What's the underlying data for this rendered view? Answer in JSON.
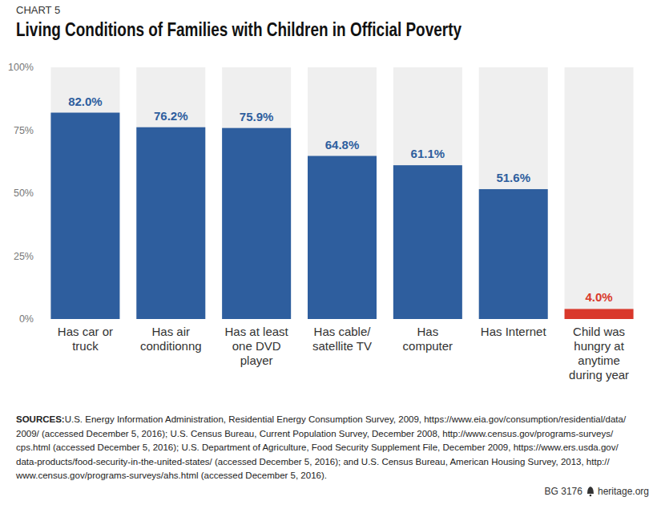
{
  "chart_data": {
    "type": "bar",
    "label": "CHART 5",
    "title": "Living Conditions of Families with Children in Official Poverty",
    "categories": [
      "Has car or truck",
      "Has air conditionng",
      "Has at least one DVD player",
      "Has cable/satellite TV",
      "Has computer",
      "Has Internet",
      "Child was hungry at anytime during year"
    ],
    "values": [
      82.0,
      76.2,
      75.9,
      64.8,
      61.1,
      51.6,
      4.0
    ],
    "value_labels": [
      "82.0%",
      "76.2%",
      "75.9%",
      "64.8%",
      "61.1%",
      "51.6%",
      "4.0%"
    ],
    "colors": [
      "#2e5e9e",
      "#2e5e9e",
      "#2e5e9e",
      "#2e5e9e",
      "#2e5e9e",
      "#2e5e9e",
      "#d9382b"
    ],
    "data_labels": true,
    "grid": false,
    "ylim": [
      0,
      100
    ],
    "yticks": [
      {
        "value": 0,
        "label": "0%"
      },
      {
        "value": 25,
        "label": "25%"
      },
      {
        "value": 50,
        "label": "50%"
      },
      {
        "value": 75,
        "label": "75%"
      },
      {
        "value": 100,
        "label": "100%"
      }
    ],
    "source_label": "SOURCES:",
    "source": "U.S. Energy Information Administration, Residential Energy Consumption Survey, 2009, https://www.eia.gov/consumption/residential/data/2009/ (accessed December 5, 2016); U.S. Census Bureau, Current Population Survey, December 2008, http://www.census.gov/programs-surveys/cps.html (accessed December 5, 2016); U.S. Department of Agriculture, Food Security Supplement File, December 2009, https://www.ers.usda.gov/data-products/food-security-in-the-united-states/ (accessed December 5, 2016); and U.S. Census Bureau, American Housing Survey, 2013, http://www.census.gov/programs-surveys/ahs.html (accessed December 5, 2016).",
    "footer": [
      "BG 3176",
      "heritage.org"
    ]
  }
}
